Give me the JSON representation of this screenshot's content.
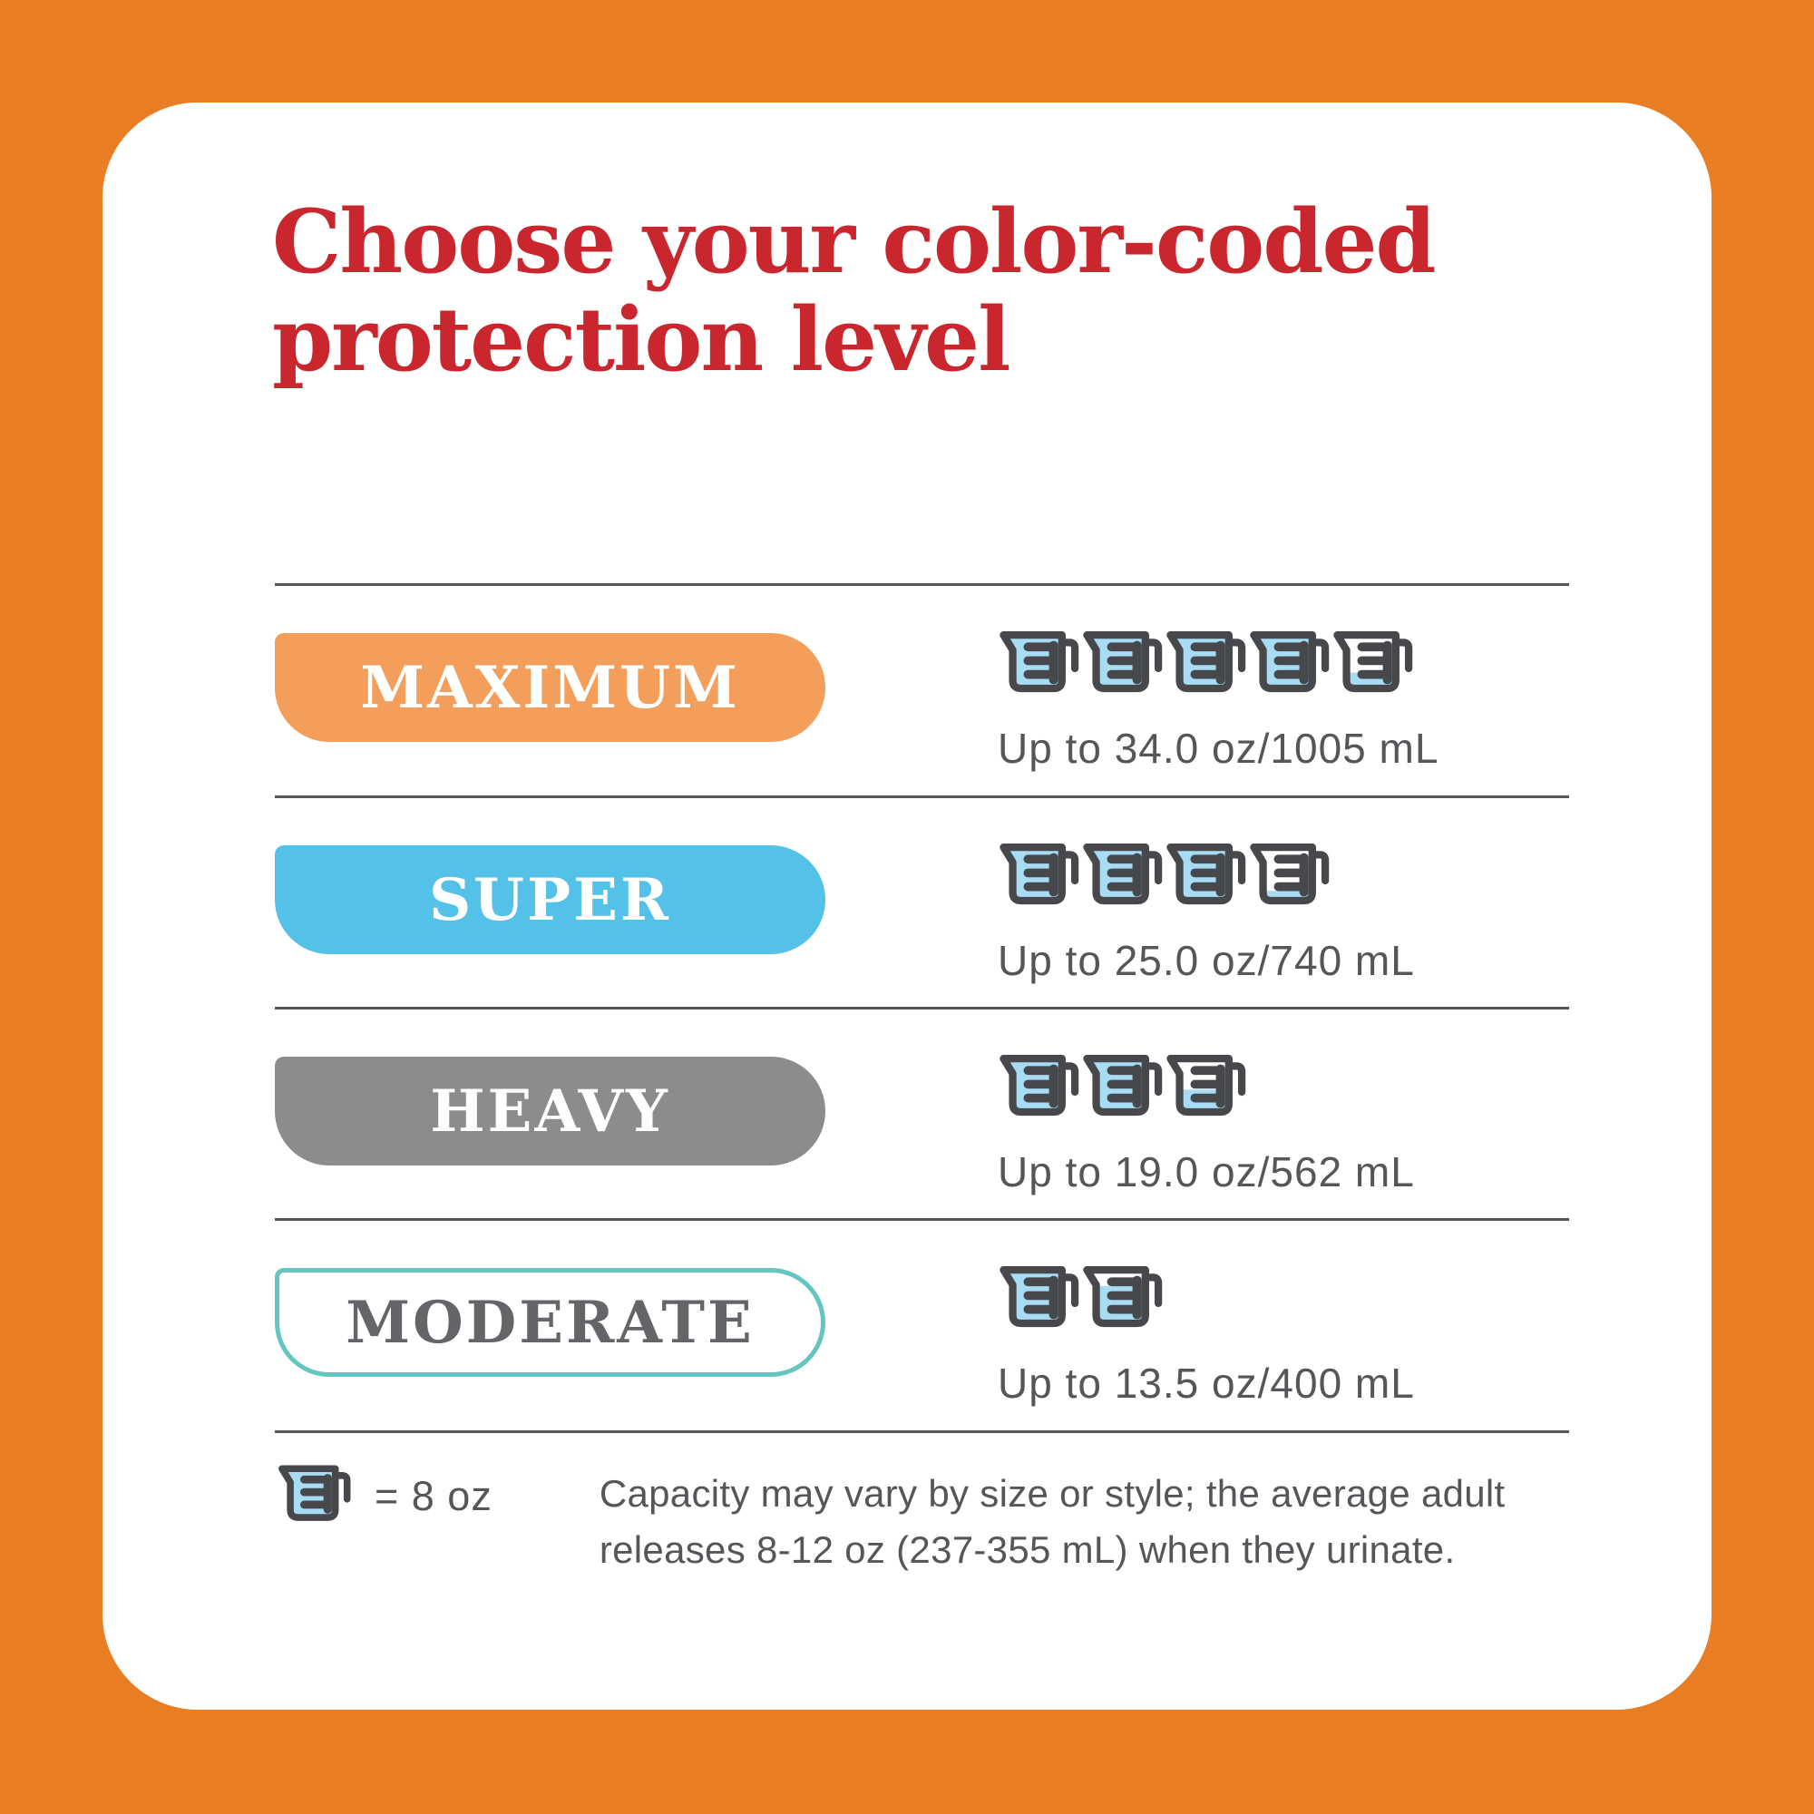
{
  "title": "Choose your color-coded\nprotection level",
  "colors": {
    "background_orange": "#E97D23",
    "card_white": "#FFFFFF",
    "title_red": "#C9262E",
    "divider_gray": "#54565A",
    "body_text_gray": "#54565A",
    "cup_outline": "#46484B",
    "cup_water_blue": "#A8DCF5",
    "maximum_orange": "#F49E5C",
    "super_blue": "#54C2E8",
    "heavy_gray": "#8A8C8E",
    "moderate_teal_border": "#65C5BF",
    "moderate_text_gray": "#636569"
  },
  "levels": [
    {
      "name": "MAXIMUM",
      "pill_fill": "#F49E5C",
      "pill_border": null,
      "label_color": "#FFFFFF",
      "capacity": "Up to 34.0 oz/1005 mL",
      "capacity_oz": 34.0,
      "capacity_ml": 1005,
      "cups": [
        1,
        1,
        1,
        1,
        0.25
      ]
    },
    {
      "name": "SUPER",
      "pill_fill": "#54C2E8",
      "pill_border": null,
      "label_color": "#FFFFFF",
      "capacity": "Up to 25.0 oz/740 mL",
      "capacity_oz": 25.0,
      "capacity_ml": 740,
      "cups": [
        1,
        1,
        1,
        0.13
      ]
    },
    {
      "name": "HEAVY",
      "pill_fill": "#8A8C8E",
      "pill_border": null,
      "label_color": "#FFFFFF",
      "capacity": "Up to 19.0 oz/562 mL",
      "capacity_oz": 19.0,
      "capacity_ml": 562,
      "cups": [
        1,
        1,
        0.38
      ]
    },
    {
      "name": "MODERATE",
      "pill_fill": "#FFFFFF",
      "pill_border": "#65C5BF",
      "label_color": "#636569",
      "capacity": "Up to 13.5 oz/400 mL",
      "capacity_oz": 13.5,
      "capacity_ml": 400,
      "cups": [
        1,
        0.68
      ]
    }
  ],
  "legend": {
    "cup_icon": "measuring-cup-icon",
    "cup_value": 1,
    "equals_label": "= 8 oz",
    "cup_unit_oz": 8,
    "note": "Capacity may vary by size or style; the average adult\nreleases 8-12 oz (237-355 mL) when they urinate."
  }
}
